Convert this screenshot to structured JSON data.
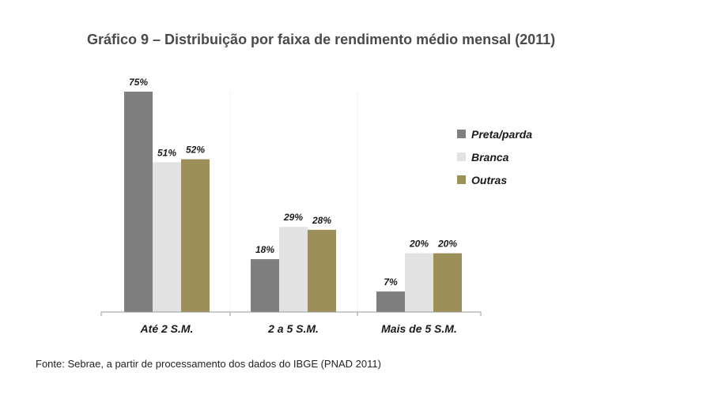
{
  "title": "Gráfico 9 – Distribuição por faixa de rendimento médio mensal (2011)",
  "source": "Fonte: Sebrae, a partir de processamento dos dados do IBGE (PNAD 2011)",
  "chart_data": {
    "type": "bar",
    "title": "Gráfico 9 – Distribuição por faixa de rendimento médio mensal (2011)",
    "xlabel": "",
    "ylabel": "",
    "ylim": [
      0,
      75
    ],
    "grid": false,
    "legend_position": "right",
    "categories": [
      "Até 2 S.M.",
      "2 a 5 S.M.",
      "Mais de 5 S.M."
    ],
    "series": [
      {
        "name": "Preta/parda",
        "color": "#7f7f7f",
        "values": [
          75,
          18,
          7
        ],
        "labels": [
          "75%",
          "18%",
          "7%"
        ]
      },
      {
        "name": "Branca",
        "color": "#e2e2e2",
        "values": [
          51,
          29,
          20
        ],
        "labels": [
          "51%",
          "29%",
          "20%"
        ]
      },
      {
        "name": "Outras",
        "color": "#9c8f58",
        "values": [
          52,
          28,
          20
        ],
        "labels": [
          "52%",
          "28%",
          "20%"
        ]
      }
    ]
  }
}
